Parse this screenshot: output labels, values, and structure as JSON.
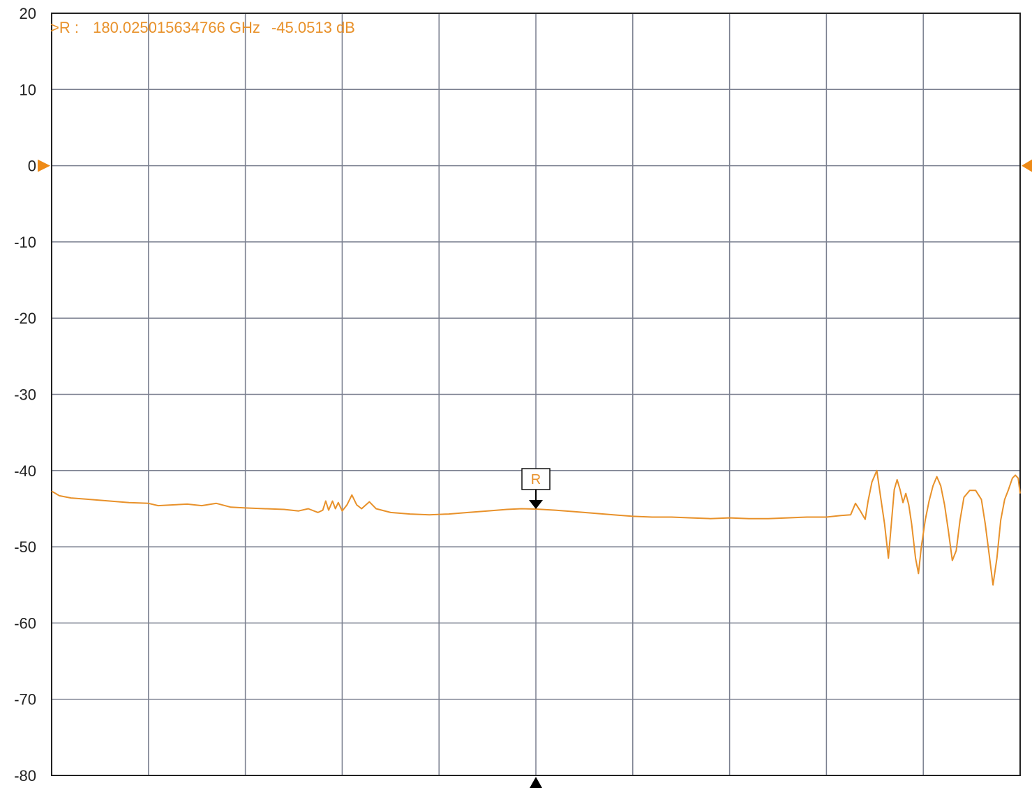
{
  "chart_data": {
    "type": "line",
    "title": "",
    "xlabel": "",
    "ylabel": "",
    "ylim": [
      -80,
      20
    ],
    "yticks": [
      20,
      10,
      0,
      -10,
      -20,
      -30,
      -40,
      -50,
      -60,
      -70,
      -80
    ],
    "x_divisions": 10,
    "grid": true,
    "reference_level": 0,
    "series": [
      {
        "color": "#e8912a",
        "points": [
          [
            0.0,
            -42.7
          ],
          [
            0.08,
            -43.3
          ],
          [
            0.2,
            -43.6
          ],
          [
            0.4,
            -43.8
          ],
          [
            0.6,
            -44.0
          ],
          [
            0.8,
            -44.2
          ],
          [
            1.0,
            -44.3
          ],
          [
            1.1,
            -44.6
          ],
          [
            1.25,
            -44.5
          ],
          [
            1.4,
            -44.4
          ],
          [
            1.55,
            -44.6
          ],
          [
            1.7,
            -44.3
          ],
          [
            1.85,
            -44.8
          ],
          [
            2.0,
            -44.9
          ],
          [
            2.2,
            -45.0
          ],
          [
            2.4,
            -45.1
          ],
          [
            2.55,
            -45.3
          ],
          [
            2.65,
            -45.0
          ],
          [
            2.75,
            -45.5
          ],
          [
            2.8,
            -45.2
          ],
          [
            2.83,
            -44.0
          ],
          [
            2.86,
            -45.2
          ],
          [
            2.9,
            -44.0
          ],
          [
            2.93,
            -45.0
          ],
          [
            2.96,
            -44.2
          ],
          [
            3.0,
            -45.3
          ],
          [
            3.05,
            -44.5
          ],
          [
            3.1,
            -43.2
          ],
          [
            3.15,
            -44.5
          ],
          [
            3.2,
            -45.0
          ],
          [
            3.28,
            -44.1
          ],
          [
            3.35,
            -45.0
          ],
          [
            3.5,
            -45.5
          ],
          [
            3.7,
            -45.7
          ],
          [
            3.9,
            -45.8
          ],
          [
            4.1,
            -45.7
          ],
          [
            4.3,
            -45.5
          ],
          [
            4.5,
            -45.3
          ],
          [
            4.7,
            -45.1
          ],
          [
            4.85,
            -45.0
          ],
          [
            5.0,
            -45.05
          ],
          [
            5.2,
            -45.2
          ],
          [
            5.4,
            -45.4
          ],
          [
            5.6,
            -45.6
          ],
          [
            5.8,
            -45.8
          ],
          [
            6.0,
            -46.0
          ],
          [
            6.2,
            -46.1
          ],
          [
            6.4,
            -46.1
          ],
          [
            6.6,
            -46.2
          ],
          [
            6.8,
            -46.3
          ],
          [
            7.0,
            -46.2
          ],
          [
            7.2,
            -46.3
          ],
          [
            7.4,
            -46.3
          ],
          [
            7.6,
            -46.2
          ],
          [
            7.8,
            -46.1
          ],
          [
            8.0,
            -46.1
          ],
          [
            8.15,
            -45.9
          ],
          [
            8.25,
            -45.8
          ],
          [
            8.3,
            -44.3
          ],
          [
            8.35,
            -45.3
          ],
          [
            8.4,
            -46.4
          ],
          [
            8.43,
            -44.0
          ],
          [
            8.47,
            -41.5
          ],
          [
            8.52,
            -40.0
          ],
          [
            8.56,
            -43.5
          ],
          [
            8.6,
            -47.0
          ],
          [
            8.64,
            -51.5
          ],
          [
            8.67,
            -47.0
          ],
          [
            8.7,
            -42.5
          ],
          [
            8.73,
            -41.2
          ],
          [
            8.76,
            -42.5
          ],
          [
            8.79,
            -44.2
          ],
          [
            8.82,
            -43.0
          ],
          [
            8.85,
            -44.5
          ],
          [
            8.88,
            -47.0
          ],
          [
            8.92,
            -51.5
          ],
          [
            8.95,
            -53.5
          ],
          [
            8.98,
            -50.0
          ],
          [
            9.02,
            -46.5
          ],
          [
            9.06,
            -44.0
          ],
          [
            9.1,
            -42.0
          ],
          [
            9.14,
            -40.8
          ],
          [
            9.18,
            -42.0
          ],
          [
            9.22,
            -44.5
          ],
          [
            9.26,
            -48.0
          ],
          [
            9.3,
            -51.8
          ],
          [
            9.34,
            -50.5
          ],
          [
            9.38,
            -46.5
          ],
          [
            9.42,
            -43.5
          ],
          [
            9.48,
            -42.6
          ],
          [
            9.54,
            -42.6
          ],
          [
            9.6,
            -43.8
          ],
          [
            9.64,
            -47.0
          ],
          [
            9.68,
            -51.0
          ],
          [
            9.72,
            -55.0
          ],
          [
            9.76,
            -51.5
          ],
          [
            9.8,
            -46.5
          ],
          [
            9.84,
            -43.8
          ],
          [
            9.88,
            -42.5
          ],
          [
            9.92,
            -41.0
          ],
          [
            9.95,
            -40.6
          ],
          [
            9.98,
            -41.0
          ],
          [
            10.0,
            -43.0
          ]
        ]
      }
    ],
    "marker": {
      "name": "R",
      "x": 5.0,
      "value": -45.0513,
      "readout_prefix": ">R :",
      "readout_frequency": "180.025015634766 GHz",
      "readout_level": "-45.0513  dB"
    }
  },
  "colors": {
    "trace": "#e8912a",
    "grid": "#7a7f8f",
    "frame": "#222222",
    "marker_box": "#111111",
    "marker_arrow": "#000000",
    "reference_arrow": "#ee8a16"
  },
  "icons": {
    "reference_left": "reference-level-triangle-icon",
    "reference_right": "reference-level-triangle-icon",
    "marker_down": "marker-down-arrow-icon",
    "marker_bottom": "marker-position-triangle-icon"
  }
}
